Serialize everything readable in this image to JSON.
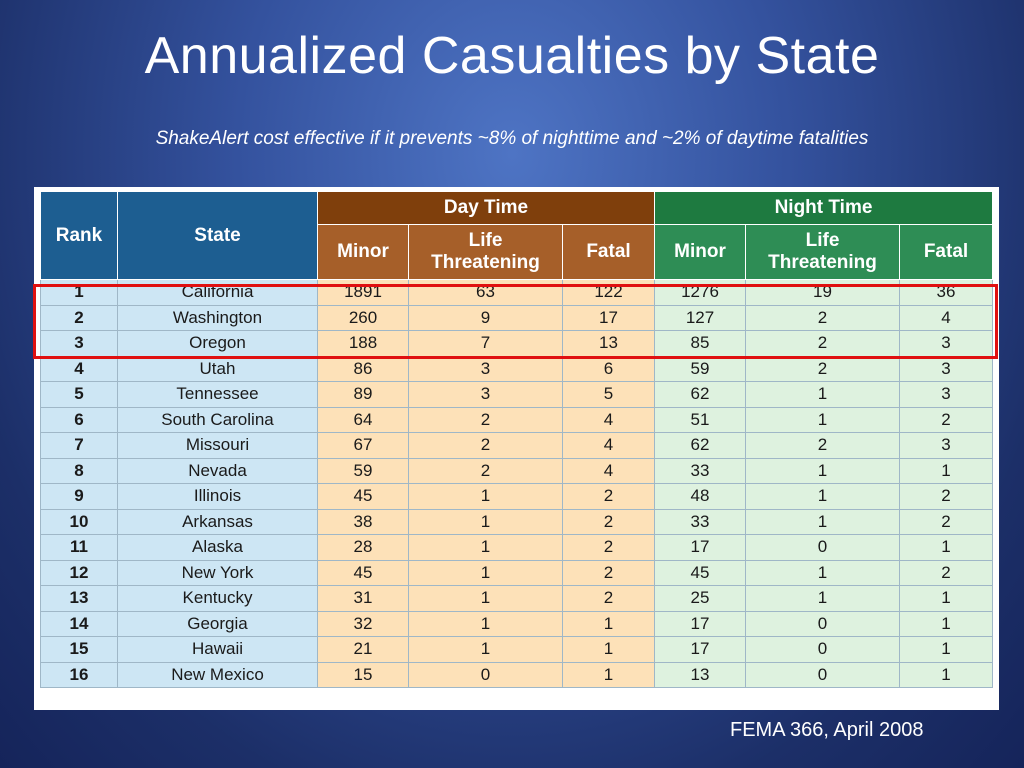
{
  "slide": {
    "title": "Annualized Casualties by State",
    "subtitle": "ShakeAlert cost effective if it prevents ~8% of nighttime and ~2% of daytime fatalities",
    "source": "FEMA 366, April 2008"
  },
  "table": {
    "headers": {
      "rank": "Rank",
      "state": "State",
      "day_time": "Day Time",
      "night_time": "Night Time",
      "minor": "Minor",
      "life_threatening_line1": "Life",
      "life_threatening_line2": "Threatening",
      "fatal": "Fatal"
    },
    "rows": [
      [
        "1",
        "California",
        "1891",
        "63",
        "122",
        "1276",
        "19",
        "36"
      ],
      [
        "2",
        "Washington",
        "260",
        "9",
        "17",
        "127",
        "2",
        "4"
      ],
      [
        "3",
        "Oregon",
        "188",
        "7",
        "13",
        "85",
        "2",
        "3"
      ],
      [
        "4",
        "Utah",
        "86",
        "3",
        "6",
        "59",
        "2",
        "3"
      ],
      [
        "5",
        "Tennessee",
        "89",
        "3",
        "5",
        "62",
        "1",
        "3"
      ],
      [
        "6",
        "South Carolina",
        "64",
        "2",
        "4",
        "51",
        "1",
        "2"
      ],
      [
        "7",
        "Missouri",
        "67",
        "2",
        "4",
        "62",
        "2",
        "3"
      ],
      [
        "8",
        "Nevada",
        "59",
        "2",
        "4",
        "33",
        "1",
        "1"
      ],
      [
        "9",
        "Illinois",
        "45",
        "1",
        "2",
        "48",
        "1",
        "2"
      ],
      [
        "10",
        "Arkansas",
        "38",
        "1",
        "2",
        "33",
        "1",
        "2"
      ],
      [
        "11",
        "Alaska",
        "28",
        "1",
        "2",
        "17",
        "0",
        "1"
      ],
      [
        "12",
        "New York",
        "45",
        "1",
        "2",
        "45",
        "1",
        "2"
      ],
      [
        "13",
        "Kentucky",
        "31",
        "1",
        "2",
        "25",
        "1",
        "1"
      ],
      [
        "14",
        "Georgia",
        "32",
        "1",
        "1",
        "17",
        "0",
        "1"
      ],
      [
        "15",
        "Hawaii",
        "21",
        "1",
        "1",
        "17",
        "0",
        "1"
      ],
      [
        "16",
        "New Mexico",
        "15",
        "0",
        "1",
        "13",
        "0",
        "1"
      ]
    ],
    "highlighted_rows": [
      1,
      2,
      3
    ],
    "colors": {
      "highlight": "#e01010",
      "rank_state_header": "#1d5e91",
      "day_group_header": "#7f3f0c",
      "day_sub_header": "#a65f29",
      "night_group_header": "#1e7a40",
      "night_sub_header": "#2e8d55",
      "rank_state_cell": "#cde6f4",
      "day_cell": "#fde1b8",
      "night_cell": "#def2df"
    }
  }
}
